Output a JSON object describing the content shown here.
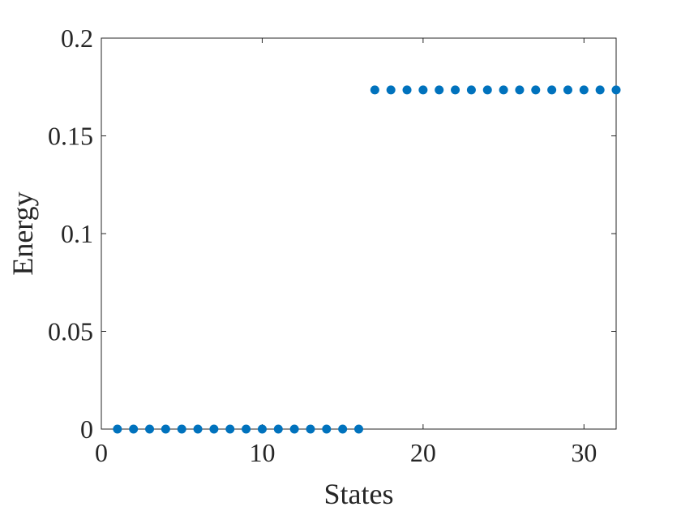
{
  "chart_data": {
    "type": "scatter",
    "title": "",
    "xlabel": "States",
    "ylabel": "Energy",
    "xlim": [
      0,
      32
    ],
    "ylim": [
      0,
      0.2
    ],
    "xticks": [
      0,
      10,
      20,
      30
    ],
    "xtick_labels": [
      "0",
      "10",
      "20",
      "30"
    ],
    "yticks": [
      0,
      0.05,
      0.1,
      0.15,
      0.2
    ],
    "ytick_labels": [
      "0",
      "0.05",
      "0.1",
      "0.15",
      "0.2"
    ],
    "grid": false,
    "marker_color": "#0072BD",
    "series": [
      {
        "x": [
          1,
          2,
          3,
          4,
          5,
          6,
          7,
          8,
          9,
          10,
          11,
          12,
          13,
          14,
          15,
          16,
          17,
          18,
          19,
          20,
          21,
          22,
          23,
          24,
          25,
          26,
          27,
          28,
          29,
          30,
          31,
          32
        ],
        "y": [
          0,
          0,
          0,
          0,
          0,
          0,
          0,
          0,
          0,
          0,
          0,
          0,
          0,
          0,
          0,
          0,
          0.1735,
          0.1735,
          0.1735,
          0.1735,
          0.1735,
          0.1735,
          0.1735,
          0.1735,
          0.1735,
          0.1735,
          0.1735,
          0.1735,
          0.1735,
          0.1735,
          0.1735,
          0.1735
        ]
      }
    ]
  }
}
